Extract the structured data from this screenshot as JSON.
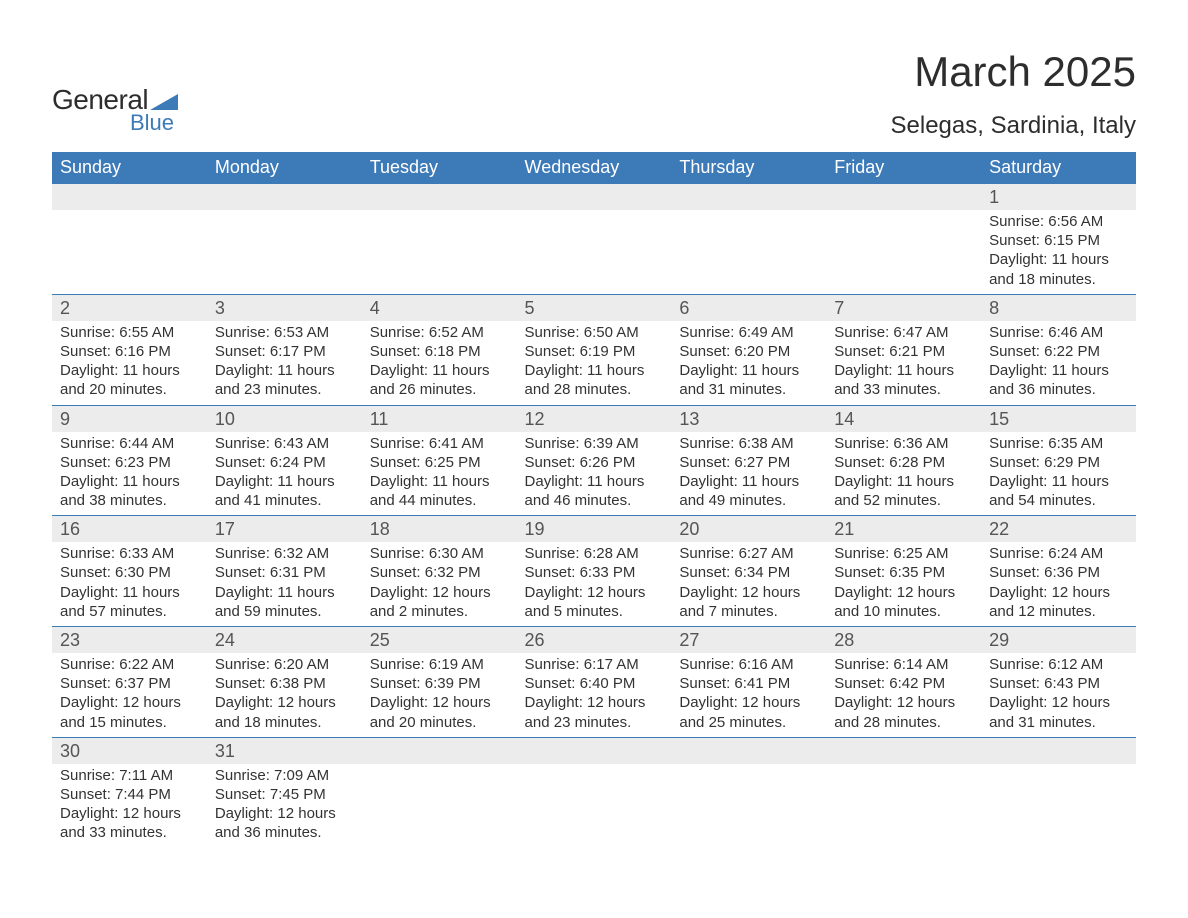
{
  "logo": {
    "word1": "General",
    "word2": "Blue",
    "shape_color": "#3d7ab8",
    "word1_color": "#2d2d2d",
    "word2_color": "#3d7ab8"
  },
  "title": "March 2025",
  "location": "Selegas, Sardinia, Italy",
  "colors": {
    "header_bg": "#3d7ab8",
    "header_text": "#ffffff",
    "daynum_bg": "#ececec",
    "row_border": "#3d7ab8",
    "body_text": "#333333",
    "daynum_text": "#555555"
  },
  "day_headers": [
    "Sunday",
    "Monday",
    "Tuesday",
    "Wednesday",
    "Thursday",
    "Friday",
    "Saturday"
  ],
  "weeks": [
    [
      null,
      null,
      null,
      null,
      null,
      null,
      {
        "num": "1",
        "sunrise": "Sunrise: 6:56 AM",
        "sunset": "Sunset: 6:15 PM",
        "daylight": "Daylight: 11 hours and 18 minutes."
      }
    ],
    [
      {
        "num": "2",
        "sunrise": "Sunrise: 6:55 AM",
        "sunset": "Sunset: 6:16 PM",
        "daylight": "Daylight: 11 hours and 20 minutes."
      },
      {
        "num": "3",
        "sunrise": "Sunrise: 6:53 AM",
        "sunset": "Sunset: 6:17 PM",
        "daylight": "Daylight: 11 hours and 23 minutes."
      },
      {
        "num": "4",
        "sunrise": "Sunrise: 6:52 AM",
        "sunset": "Sunset: 6:18 PM",
        "daylight": "Daylight: 11 hours and 26 minutes."
      },
      {
        "num": "5",
        "sunrise": "Sunrise: 6:50 AM",
        "sunset": "Sunset: 6:19 PM",
        "daylight": "Daylight: 11 hours and 28 minutes."
      },
      {
        "num": "6",
        "sunrise": "Sunrise: 6:49 AM",
        "sunset": "Sunset: 6:20 PM",
        "daylight": "Daylight: 11 hours and 31 minutes."
      },
      {
        "num": "7",
        "sunrise": "Sunrise: 6:47 AM",
        "sunset": "Sunset: 6:21 PM",
        "daylight": "Daylight: 11 hours and 33 minutes."
      },
      {
        "num": "8",
        "sunrise": "Sunrise: 6:46 AM",
        "sunset": "Sunset: 6:22 PM",
        "daylight": "Daylight: 11 hours and 36 minutes."
      }
    ],
    [
      {
        "num": "9",
        "sunrise": "Sunrise: 6:44 AM",
        "sunset": "Sunset: 6:23 PM",
        "daylight": "Daylight: 11 hours and 38 minutes."
      },
      {
        "num": "10",
        "sunrise": "Sunrise: 6:43 AM",
        "sunset": "Sunset: 6:24 PM",
        "daylight": "Daylight: 11 hours and 41 minutes."
      },
      {
        "num": "11",
        "sunrise": "Sunrise: 6:41 AM",
        "sunset": "Sunset: 6:25 PM",
        "daylight": "Daylight: 11 hours and 44 minutes."
      },
      {
        "num": "12",
        "sunrise": "Sunrise: 6:39 AM",
        "sunset": "Sunset: 6:26 PM",
        "daylight": "Daylight: 11 hours and 46 minutes."
      },
      {
        "num": "13",
        "sunrise": "Sunrise: 6:38 AM",
        "sunset": "Sunset: 6:27 PM",
        "daylight": "Daylight: 11 hours and 49 minutes."
      },
      {
        "num": "14",
        "sunrise": "Sunrise: 6:36 AM",
        "sunset": "Sunset: 6:28 PM",
        "daylight": "Daylight: 11 hours and 52 minutes."
      },
      {
        "num": "15",
        "sunrise": "Sunrise: 6:35 AM",
        "sunset": "Sunset: 6:29 PM",
        "daylight": "Daylight: 11 hours and 54 minutes."
      }
    ],
    [
      {
        "num": "16",
        "sunrise": "Sunrise: 6:33 AM",
        "sunset": "Sunset: 6:30 PM",
        "daylight": "Daylight: 11 hours and 57 minutes."
      },
      {
        "num": "17",
        "sunrise": "Sunrise: 6:32 AM",
        "sunset": "Sunset: 6:31 PM",
        "daylight": "Daylight: 11 hours and 59 minutes."
      },
      {
        "num": "18",
        "sunrise": "Sunrise: 6:30 AM",
        "sunset": "Sunset: 6:32 PM",
        "daylight": "Daylight: 12 hours and 2 minutes."
      },
      {
        "num": "19",
        "sunrise": "Sunrise: 6:28 AM",
        "sunset": "Sunset: 6:33 PM",
        "daylight": "Daylight: 12 hours and 5 minutes."
      },
      {
        "num": "20",
        "sunrise": "Sunrise: 6:27 AM",
        "sunset": "Sunset: 6:34 PM",
        "daylight": "Daylight: 12 hours and 7 minutes."
      },
      {
        "num": "21",
        "sunrise": "Sunrise: 6:25 AM",
        "sunset": "Sunset: 6:35 PM",
        "daylight": "Daylight: 12 hours and 10 minutes."
      },
      {
        "num": "22",
        "sunrise": "Sunrise: 6:24 AM",
        "sunset": "Sunset: 6:36 PM",
        "daylight": "Daylight: 12 hours and 12 minutes."
      }
    ],
    [
      {
        "num": "23",
        "sunrise": "Sunrise: 6:22 AM",
        "sunset": "Sunset: 6:37 PM",
        "daylight": "Daylight: 12 hours and 15 minutes."
      },
      {
        "num": "24",
        "sunrise": "Sunrise: 6:20 AM",
        "sunset": "Sunset: 6:38 PM",
        "daylight": "Daylight: 12 hours and 18 minutes."
      },
      {
        "num": "25",
        "sunrise": "Sunrise: 6:19 AM",
        "sunset": "Sunset: 6:39 PM",
        "daylight": "Daylight: 12 hours and 20 minutes."
      },
      {
        "num": "26",
        "sunrise": "Sunrise: 6:17 AM",
        "sunset": "Sunset: 6:40 PM",
        "daylight": "Daylight: 12 hours and 23 minutes."
      },
      {
        "num": "27",
        "sunrise": "Sunrise: 6:16 AM",
        "sunset": "Sunset: 6:41 PM",
        "daylight": "Daylight: 12 hours and 25 minutes."
      },
      {
        "num": "28",
        "sunrise": "Sunrise: 6:14 AM",
        "sunset": "Sunset: 6:42 PM",
        "daylight": "Daylight: 12 hours and 28 minutes."
      },
      {
        "num": "29",
        "sunrise": "Sunrise: 6:12 AM",
        "sunset": "Sunset: 6:43 PM",
        "daylight": "Daylight: 12 hours and 31 minutes."
      }
    ],
    [
      {
        "num": "30",
        "sunrise": "Sunrise: 7:11 AM",
        "sunset": "Sunset: 7:44 PM",
        "daylight": "Daylight: 12 hours and 33 minutes."
      },
      {
        "num": "31",
        "sunrise": "Sunrise: 7:09 AM",
        "sunset": "Sunset: 7:45 PM",
        "daylight": "Daylight: 12 hours and 36 minutes."
      },
      null,
      null,
      null,
      null,
      null
    ]
  ]
}
